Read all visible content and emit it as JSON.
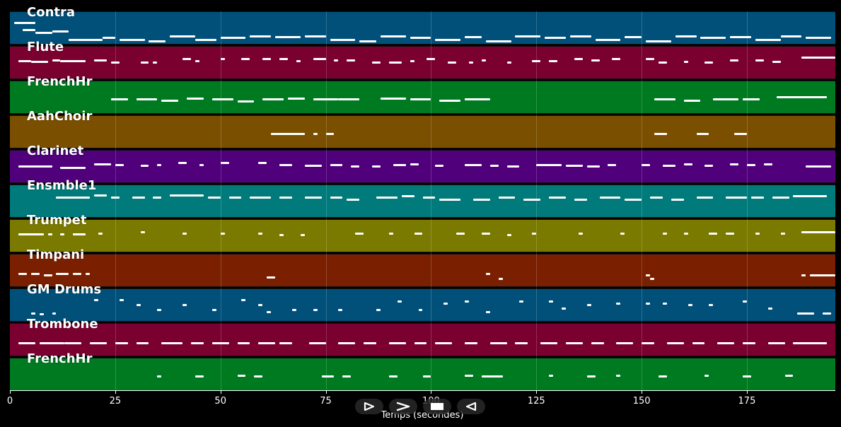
{
  "tracks": [
    {
      "name": "Contra",
      "color": "#00507a",
      "notes": [
        [
          1,
          5,
          0.3
        ],
        [
          3,
          3,
          0.5
        ],
        [
          6,
          4,
          0.6
        ],
        [
          10,
          4,
          0.55
        ],
        [
          14,
          8,
          0.8
        ],
        [
          22,
          3,
          0.75
        ],
        [
          26,
          6,
          0.8
        ],
        [
          33,
          4,
          0.85
        ],
        [
          38,
          6,
          0.7
        ],
        [
          44,
          5,
          0.8
        ],
        [
          50,
          6,
          0.75
        ],
        [
          57,
          5,
          0.7
        ],
        [
          63,
          6,
          0.72
        ],
        [
          70,
          5,
          0.7
        ],
        [
          76,
          6,
          0.8
        ],
        [
          83,
          4,
          0.85
        ],
        [
          88,
          6,
          0.7
        ],
        [
          95,
          5,
          0.75
        ],
        [
          101,
          6,
          0.8
        ],
        [
          108,
          4,
          0.72
        ],
        [
          113,
          6,
          0.85
        ],
        [
          120,
          6,
          0.7
        ],
        [
          127,
          5,
          0.75
        ],
        [
          133,
          5,
          0.7
        ],
        [
          139,
          6,
          0.8
        ],
        [
          146,
          4,
          0.72
        ],
        [
          151,
          6,
          0.85
        ],
        [
          158,
          5,
          0.7
        ],
        [
          164,
          6,
          0.75
        ],
        [
          171,
          5,
          0.72
        ],
        [
          177,
          6,
          0.8
        ],
        [
          183,
          5,
          0.7
        ],
        [
          189,
          6,
          0.75
        ]
      ]
    },
    {
      "name": "Flute",
      "color": "#7a0030",
      "notes": [
        [
          2,
          3,
          0.4
        ],
        [
          5,
          4,
          0.42
        ],
        [
          10,
          2,
          0.38
        ],
        [
          12,
          6,
          0.4
        ],
        [
          20,
          3,
          0.38
        ],
        [
          24,
          2,
          0.45
        ],
        [
          31,
          2,
          0.45
        ],
        [
          34,
          1,
          0.45
        ],
        [
          41,
          2,
          0.35
        ],
        [
          44,
          1,
          0.4
        ],
        [
          50,
          1,
          0.35
        ],
        [
          55,
          2,
          0.35
        ],
        [
          60,
          2,
          0.35
        ],
        [
          64,
          2,
          0.35
        ],
        [
          68,
          1,
          0.4
        ],
        [
          72,
          3,
          0.35
        ],
        [
          77,
          1,
          0.38
        ],
        [
          80,
          2,
          0.38
        ],
        [
          86,
          2,
          0.45
        ],
        [
          90,
          3,
          0.45
        ],
        [
          95,
          1,
          0.4
        ],
        [
          99,
          2,
          0.35
        ],
        [
          104,
          2,
          0.45
        ],
        [
          109,
          1,
          0.45
        ],
        [
          112,
          1,
          0.38
        ],
        [
          118,
          1,
          0.45
        ],
        [
          124,
          2,
          0.4
        ],
        [
          128,
          2,
          0.4
        ],
        [
          134,
          2,
          0.35
        ],
        [
          138,
          2,
          0.38
        ],
        [
          143,
          2,
          0.35
        ],
        [
          151,
          2,
          0.35
        ],
        [
          154,
          2,
          0.45
        ],
        [
          160,
          1,
          0.42
        ],
        [
          165,
          2,
          0.45
        ],
        [
          171,
          2,
          0.38
        ],
        [
          177,
          2,
          0.38
        ],
        [
          181,
          2,
          0.42
        ],
        [
          188,
          8,
          0.3
        ]
      ]
    },
    {
      "name": "FrenchHr",
      "color": "#007a20",
      "notes": [
        [
          24,
          4,
          0.5
        ],
        [
          30,
          5,
          0.5
        ],
        [
          36,
          4,
          0.55
        ],
        [
          42,
          4,
          0.48
        ],
        [
          48,
          5,
          0.52
        ],
        [
          54,
          4,
          0.58
        ],
        [
          60,
          5,
          0.5
        ],
        [
          66,
          4,
          0.48
        ],
        [
          72,
          6,
          0.52
        ],
        [
          78,
          5,
          0.5
        ],
        [
          88,
          6,
          0.48
        ],
        [
          95,
          5,
          0.5
        ],
        [
          102,
          5,
          0.55
        ],
        [
          108,
          6,
          0.52
        ],
        [
          153,
          5,
          0.5
        ],
        [
          160,
          4,
          0.55
        ],
        [
          167,
          6,
          0.5
        ],
        [
          174,
          4,
          0.52
        ],
        [
          182,
          12,
          0.45
        ]
      ]
    },
    {
      "name": "AahChoir",
      "color": "#7a4f00",
      "notes": [
        [
          62,
          8,
          0.5
        ],
        [
          72,
          1,
          0.5
        ],
        [
          75,
          2,
          0.5
        ],
        [
          153,
          3,
          0.5
        ],
        [
          163,
          3,
          0.5
        ],
        [
          172,
          3,
          0.5
        ]
      ]
    },
    {
      "name": "Clarinet",
      "color": "#4f007a",
      "notes": [
        [
          2,
          8,
          0.45
        ],
        [
          12,
          6,
          0.48
        ],
        [
          20,
          4,
          0.38
        ],
        [
          25,
          2,
          0.4
        ],
        [
          31,
          2,
          0.42
        ],
        [
          35,
          1,
          0.4
        ],
        [
          40,
          2,
          0.35
        ],
        [
          45,
          1,
          0.4
        ],
        [
          50,
          2,
          0.35
        ],
        [
          59,
          2,
          0.35
        ],
        [
          64,
          3,
          0.4
        ],
        [
          70,
          4,
          0.42
        ],
        [
          76,
          3,
          0.4
        ],
        [
          81,
          2,
          0.45
        ],
        [
          86,
          2,
          0.45
        ],
        [
          91,
          3,
          0.4
        ],
        [
          95,
          2,
          0.38
        ],
        [
          101,
          2,
          0.42
        ],
        [
          108,
          4,
          0.4
        ],
        [
          114,
          2,
          0.42
        ],
        [
          118,
          3,
          0.45
        ],
        [
          125,
          6,
          0.4
        ],
        [
          132,
          4,
          0.42
        ],
        [
          137,
          3,
          0.45
        ],
        [
          142,
          2,
          0.4
        ],
        [
          150,
          2,
          0.4
        ],
        [
          155,
          3,
          0.42
        ],
        [
          160,
          2,
          0.38
        ],
        [
          165,
          2,
          0.42
        ],
        [
          171,
          2,
          0.38
        ],
        [
          175,
          2,
          0.4
        ],
        [
          179,
          2,
          0.38
        ],
        [
          189,
          6,
          0.45
        ]
      ]
    },
    {
      "name": "Ensmble1",
      "color": "#007a7a",
      "notes": [
        [
          11,
          8,
          0.35
        ],
        [
          20,
          3,
          0.28
        ],
        [
          24,
          2,
          0.35
        ],
        [
          29,
          3,
          0.35
        ],
        [
          34,
          2,
          0.35
        ],
        [
          38,
          8,
          0.28
        ],
        [
          47,
          3,
          0.35
        ],
        [
          52,
          3,
          0.35
        ],
        [
          57,
          5,
          0.35
        ],
        [
          64,
          3,
          0.35
        ],
        [
          70,
          4,
          0.35
        ],
        [
          76,
          3,
          0.35
        ],
        [
          80,
          3,
          0.4
        ],
        [
          87,
          5,
          0.35
        ],
        [
          93,
          3,
          0.3
        ],
        [
          98,
          3,
          0.35
        ],
        [
          102,
          5,
          0.4
        ],
        [
          110,
          4,
          0.4
        ],
        [
          116,
          4,
          0.35
        ],
        [
          122,
          4,
          0.4
        ],
        [
          128,
          4,
          0.35
        ],
        [
          134,
          3,
          0.4
        ],
        [
          140,
          5,
          0.35
        ],
        [
          146,
          4,
          0.4
        ],
        [
          152,
          3,
          0.35
        ],
        [
          157,
          3,
          0.4
        ],
        [
          163,
          4,
          0.35
        ],
        [
          170,
          5,
          0.35
        ],
        [
          176,
          3,
          0.35
        ],
        [
          181,
          4,
          0.35
        ],
        [
          186,
          8,
          0.3
        ]
      ]
    },
    {
      "name": "Trumpet",
      "color": "#7a7a00",
      "notes": [
        [
          2,
          6,
          0.4
        ],
        [
          9,
          1,
          0.4
        ],
        [
          12,
          1,
          0.4
        ],
        [
          15,
          3,
          0.4
        ],
        [
          21,
          1,
          0.38
        ],
        [
          31,
          1,
          0.35
        ],
        [
          41,
          1,
          0.38
        ],
        [
          50,
          1,
          0.38
        ],
        [
          59,
          1,
          0.38
        ],
        [
          64,
          1,
          0.42
        ],
        [
          69,
          1,
          0.42
        ],
        [
          82,
          2,
          0.38
        ],
        [
          90,
          1,
          0.38
        ],
        [
          96,
          2,
          0.38
        ],
        [
          106,
          2,
          0.38
        ],
        [
          112,
          2,
          0.38
        ],
        [
          118,
          1,
          0.42
        ],
        [
          124,
          1,
          0.38
        ],
        [
          135,
          1,
          0.38
        ],
        [
          145,
          1,
          0.38
        ],
        [
          155,
          1,
          0.38
        ],
        [
          160,
          1,
          0.38
        ],
        [
          166,
          2,
          0.38
        ],
        [
          170,
          2,
          0.38
        ],
        [
          177,
          1,
          0.38
        ],
        [
          183,
          1,
          0.38
        ],
        [
          188,
          8,
          0.35
        ]
      ]
    },
    {
      "name": "Timpani",
      "color": "#7a2000",
      "notes": [
        [
          2,
          2,
          0.55
        ],
        [
          5,
          2,
          0.55
        ],
        [
          8,
          2,
          0.6
        ],
        [
          11,
          3,
          0.55
        ],
        [
          15,
          2,
          0.55
        ],
        [
          18,
          1,
          0.55
        ],
        [
          61,
          2,
          0.65
        ],
        [
          113,
          1,
          0.55
        ],
        [
          116,
          1,
          0.7
        ],
        [
          151,
          1,
          0.6
        ],
        [
          152,
          1,
          0.7
        ],
        [
          188,
          1,
          0.6
        ],
        [
          190,
          6,
          0.6
        ]
      ]
    },
    {
      "name": "GM Drums",
      "color": "#00507a",
      "notes": [
        [
          5,
          1,
          0.7
        ],
        [
          7,
          1,
          0.72
        ],
        [
          10,
          1,
          0.7
        ],
        [
          20,
          1,
          0.3
        ],
        [
          26,
          1,
          0.3
        ],
        [
          30,
          1,
          0.45
        ],
        [
          35,
          1,
          0.6
        ],
        [
          41,
          1,
          0.45
        ],
        [
          48,
          1,
          0.6
        ],
        [
          55,
          1,
          0.3
        ],
        [
          59,
          1,
          0.45
        ],
        [
          61,
          1,
          0.65
        ],
        [
          67,
          1,
          0.6
        ],
        [
          72,
          1,
          0.6
        ],
        [
          78,
          1,
          0.6
        ],
        [
          87,
          1,
          0.6
        ],
        [
          92,
          1,
          0.35
        ],
        [
          97,
          1,
          0.6
        ],
        [
          103,
          1,
          0.4
        ],
        [
          108,
          1,
          0.35
        ],
        [
          113,
          1,
          0.65
        ],
        [
          121,
          1,
          0.35
        ],
        [
          128,
          1,
          0.35
        ],
        [
          131,
          1,
          0.55
        ],
        [
          137,
          1,
          0.45
        ],
        [
          144,
          1,
          0.4
        ],
        [
          151,
          1,
          0.4
        ],
        [
          155,
          1,
          0.4
        ],
        [
          161,
          1,
          0.45
        ],
        [
          166,
          1,
          0.45
        ],
        [
          174,
          1,
          0.35
        ],
        [
          180,
          1,
          0.55
        ],
        [
          187,
          4,
          0.7
        ],
        [
          193,
          2,
          0.7
        ]
      ]
    },
    {
      "name": "Trombone",
      "color": "#7a0030",
      "notes": [
        [
          2,
          4,
          0.55
        ],
        [
          7,
          6,
          0.55
        ],
        [
          13,
          4,
          0.55
        ],
        [
          19,
          4,
          0.55
        ],
        [
          25,
          3,
          0.55
        ],
        [
          30,
          3,
          0.55
        ],
        [
          36,
          5,
          0.55
        ],
        [
          43,
          3,
          0.55
        ],
        [
          48,
          4,
          0.55
        ],
        [
          54,
          3,
          0.55
        ],
        [
          59,
          4,
          0.55
        ],
        [
          64,
          3,
          0.55
        ],
        [
          71,
          4,
          0.55
        ],
        [
          78,
          4,
          0.55
        ],
        [
          84,
          3,
          0.55
        ],
        [
          90,
          4,
          0.55
        ],
        [
          96,
          3,
          0.55
        ],
        [
          101,
          4,
          0.55
        ],
        [
          108,
          3,
          0.55
        ],
        [
          114,
          4,
          0.55
        ],
        [
          120,
          3,
          0.55
        ],
        [
          126,
          4,
          0.55
        ],
        [
          132,
          4,
          0.55
        ],
        [
          138,
          3,
          0.55
        ],
        [
          144,
          4,
          0.55
        ],
        [
          150,
          3,
          0.55
        ],
        [
          156,
          4,
          0.55
        ],
        [
          162,
          3,
          0.55
        ],
        [
          168,
          4,
          0.55
        ],
        [
          174,
          3,
          0.55
        ],
        [
          180,
          4,
          0.55
        ],
        [
          186,
          8,
          0.55
        ]
      ]
    },
    {
      "name": "FrenchHr",
      "color": "#007a20",
      "notes": [
        [
          35,
          1,
          0.5
        ],
        [
          44,
          2,
          0.5
        ],
        [
          54,
          2,
          0.48
        ],
        [
          58,
          2,
          0.5
        ],
        [
          74,
          3,
          0.5
        ],
        [
          79,
          2,
          0.5
        ],
        [
          90,
          2,
          0.5
        ],
        [
          98,
          2,
          0.5
        ],
        [
          108,
          2,
          0.48
        ],
        [
          112,
          5,
          0.5
        ],
        [
          128,
          1,
          0.48
        ],
        [
          137,
          2,
          0.5
        ],
        [
          144,
          1,
          0.48
        ],
        [
          154,
          2,
          0.5
        ],
        [
          165,
          1,
          0.48
        ],
        [
          174,
          2,
          0.5
        ],
        [
          184,
          2,
          0.48
        ]
      ]
    }
  ],
  "x_axis": {
    "ticks": [
      0,
      25,
      50,
      75,
      100,
      125,
      150,
      175
    ],
    "labels": [
      "0",
      "25",
      "50",
      "75",
      "100",
      "125",
      "150",
      "175"
    ],
    "max": 196,
    "label": "Temps (secondes)"
  },
  "controls": {
    "play_icon": "play-icon",
    "forward_icon": "forward-icon",
    "stop_icon": "stop-icon",
    "rewind_icon": "rewind-icon"
  }
}
